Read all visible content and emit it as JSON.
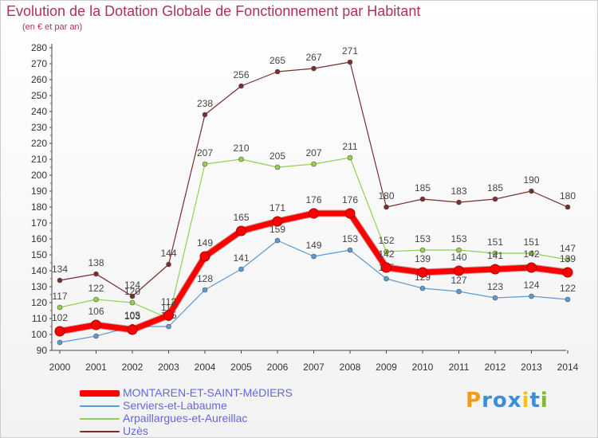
{
  "title": "Evolution de la Dotation Globale de Fonctionnement par Habitant",
  "subtitle": "(en € et par an)",
  "logo": {
    "letters": [
      "P",
      "r",
      "o",
      "x",
      "i",
      "t",
      "i"
    ],
    "colors": [
      "#f39c12",
      "#3a8fd9",
      "#3a8fd9",
      "#3a8fd9",
      "#f1c40f",
      "#3a8fd9",
      "#7dbb32"
    ]
  },
  "chart_data": {
    "type": "line",
    "title": "Evolution de la Dotation Globale de Fonctionnement par Habitant",
    "subtitle": "(en € et par an)",
    "x": [
      "2000",
      "2001",
      "2002",
      "2003",
      "2004",
      "2005",
      "2006",
      "2007",
      "2008",
      "2009",
      "2010",
      "2011",
      "2012",
      "2013",
      "2014"
    ],
    "ylim": [
      90,
      280
    ],
    "yticks": [
      90,
      100,
      110,
      120,
      130,
      140,
      150,
      160,
      170,
      180,
      190,
      200,
      210,
      220,
      230,
      240,
      250,
      260,
      270,
      280
    ],
    "grid": false,
    "legend": "bottom-left",
    "series": [
      {
        "name": "MONTAREN-ET-SAINT-MéDIERS",
        "color": "#ff0000",
        "values": [
          102,
          106,
          103,
          112,
          149,
          165,
          171,
          176,
          176,
          142,
          139,
          140,
          141,
          142,
          139
        ],
        "labels": [
          "102",
          "106",
          "103",
          "112",
          "149",
          "165",
          "171",
          "176",
          "176",
          "142",
          "139",
          "140",
          "141",
          "142",
          "139"
        ]
      },
      {
        "name": "Serviers-et-Labaume",
        "color": "#5b9bd5",
        "values": [
          95,
          99,
          105,
          105,
          128,
          141,
          159,
          149,
          153,
          135,
          129,
          127,
          123,
          124,
          122
        ],
        "labels": [
          "95",
          "99",
          "105",
          "105",
          "128",
          "141",
          "159",
          "149",
          "153",
          "135",
          "129",
          "127",
          "123",
          "124",
          "122"
        ]
      },
      {
        "name": "Arpaillargues-et-Aureillac",
        "color": "#92d050",
        "values": [
          117,
          122,
          120,
          110,
          207,
          210,
          205,
          207,
          211,
          152,
          153,
          153,
          151,
          151,
          147
        ],
        "labels": [
          "117",
          "122",
          "120",
          "110",
          "207",
          "210",
          "205",
          "207",
          "211",
          "152",
          "153",
          "153",
          "151",
          "151",
          "147"
        ]
      },
      {
        "name": "Uzès",
        "color": "#7b2c2c",
        "values": [
          134,
          138,
          124,
          144,
          238,
          256,
          265,
          267,
          271,
          180,
          185,
          183,
          185,
          190,
          180
        ],
        "labels": [
          "134",
          "138",
          "124",
          "144",
          "238",
          "256",
          "265",
          "267",
          "271",
          "180",
          "185",
          "183",
          "185",
          "190",
          "180"
        ]
      }
    ]
  }
}
